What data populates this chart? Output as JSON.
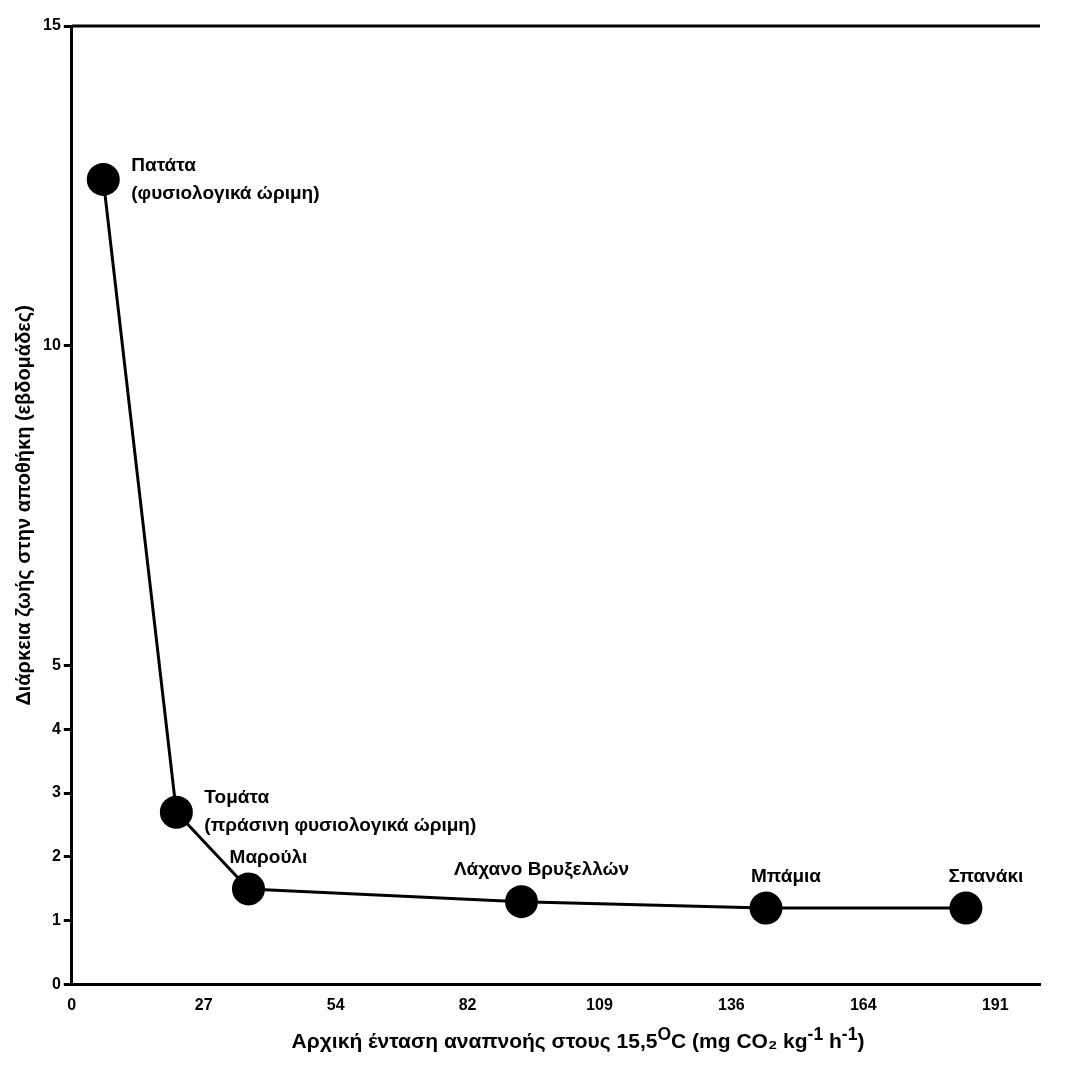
{
  "chart_data": {
    "type": "line",
    "xlabel": "Αρχική ένταση αναπνοής στους 15,5$^{O}$C (mg CO₂ kg$^{-1}$ h$^{-1}$)",
    "ylabel": "Διάρκεια ζωής στην αποθήκη (εβδομάδες)",
    "x": [
      6.5,
      21.6,
      36.5,
      92.9,
      143.4,
      184.7
    ],
    "series": [
      {
        "color": "#000000",
        "values": [
          12.6,
          2.7,
          1.5,
          1.3,
          1.2,
          1.2
        ]
      }
    ],
    "marker": "circle",
    "line_style": "solid",
    "grid": false,
    "legend": false,
    "xlim": [
      0,
      200
    ],
    "xticks": [
      0,
      {
        "value": 27.25,
        "label": "27"
      },
      {
        "value": 54.5,
        "label": "54"
      },
      {
        "value": 81.75,
        "label": "82"
      },
      {
        "value": 109,
        "label": "109"
      },
      {
        "value": 136.25,
        "label": "136"
      },
      {
        "value": 163.5,
        "label": "164"
      },
      {
        "value": 190.75,
        "label": "191"
      }
    ],
    "ylim": [
      0,
      15
    ],
    "yticks": [
      0,
      1,
      2,
      3,
      4,
      5,
      10,
      15
    ],
    "annotations": [
      {
        "text": "Πατάτα\n(φυσιολογικά ώριμη)",
        "x": 6.5,
        "y": 12.6
      },
      {
        "text": "Τομάτα\n(πράσινη φυσιολογικά ώριμη)",
        "x": 21.6,
        "y": 2.7
      },
      {
        "text": "Μαρούλι",
        "x": 36.5,
        "y": 1.5
      },
      {
        "text": "Λάχανο Βρυξελλών",
        "x": 92.9,
        "y": 1.3
      },
      {
        "text": "Μπάμια",
        "x": 143.4,
        "y": 1.2
      },
      {
        "text": "Σπανάκι",
        "x": 184.7,
        "y": 1.2
      }
    ]
  }
}
